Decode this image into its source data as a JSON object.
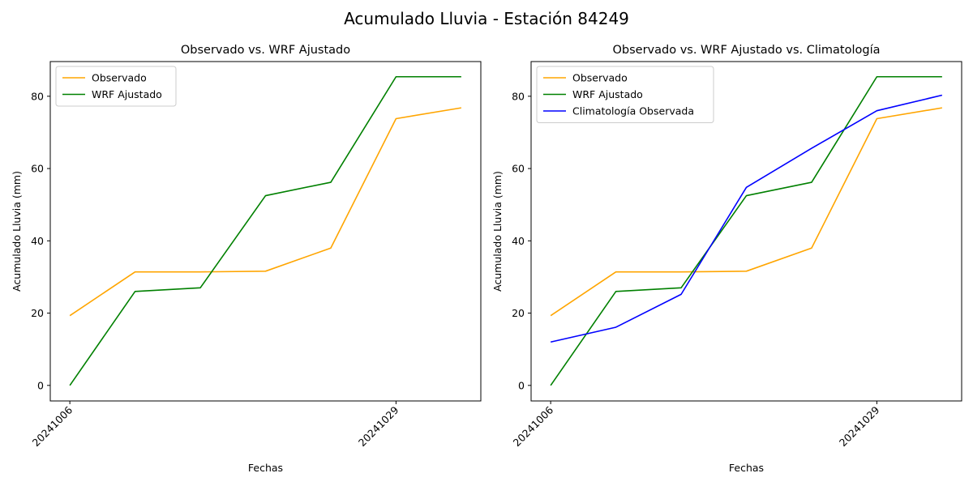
{
  "figure": {
    "suptitle": "Acumulado Lluvia - Estación 84249"
  },
  "chart_data": [
    {
      "type": "line",
      "title": "Observado vs. WRF Ajustado",
      "xlabel": "Fechas",
      "ylabel": "Acumulado Lluvia (mm)",
      "x": [
        0,
        1,
        2,
        3,
        4,
        5,
        6
      ],
      "xticks": [
        {
          "at": 0,
          "label": "20241006"
        },
        {
          "at": 5,
          "label": "20241029"
        }
      ],
      "yticks": [
        0,
        20,
        40,
        60,
        80
      ],
      "ylim": [
        -4.3,
        89.6
      ],
      "xlim": [
        -0.3,
        6.3
      ],
      "legend_position": "upper-left",
      "grid": false,
      "series": [
        {
          "name": "Observado",
          "color": "#ffa500",
          "values": [
            19.3,
            31.4,
            31.4,
            31.6,
            38.0,
            73.8,
            76.8
          ]
        },
        {
          "name": "WRF Ajustado",
          "color": "#008000",
          "values": [
            0.0,
            26.0,
            27.0,
            52.5,
            56.2,
            85.4,
            85.4
          ]
        }
      ]
    },
    {
      "type": "line",
      "title": "Observado vs. WRF Ajustado vs. Climatología",
      "xlabel": "Fechas",
      "ylabel": "Acumulado Lluvia (mm)",
      "x": [
        0,
        1,
        2,
        3,
        4,
        5,
        6
      ],
      "xticks": [
        {
          "at": 0,
          "label": "20241006"
        },
        {
          "at": 5,
          "label": "20241029"
        }
      ],
      "yticks": [
        0,
        20,
        40,
        60,
        80
      ],
      "ylim": [
        -4.3,
        89.6
      ],
      "xlim": [
        -0.3,
        6.3
      ],
      "legend_position": "upper-left",
      "grid": false,
      "series": [
        {
          "name": "Observado",
          "color": "#ffa500",
          "values": [
            19.3,
            31.4,
            31.4,
            31.6,
            38.0,
            73.8,
            76.8
          ]
        },
        {
          "name": "WRF Ajustado",
          "color": "#008000",
          "values": [
            0.0,
            26.0,
            27.0,
            52.5,
            56.2,
            85.4,
            85.4
          ]
        },
        {
          "name": "Climatología Observada",
          "color": "#0000ff",
          "values": [
            12.0,
            16.1,
            25.2,
            54.8,
            65.6,
            76.0,
            80.3
          ]
        }
      ]
    }
  ]
}
